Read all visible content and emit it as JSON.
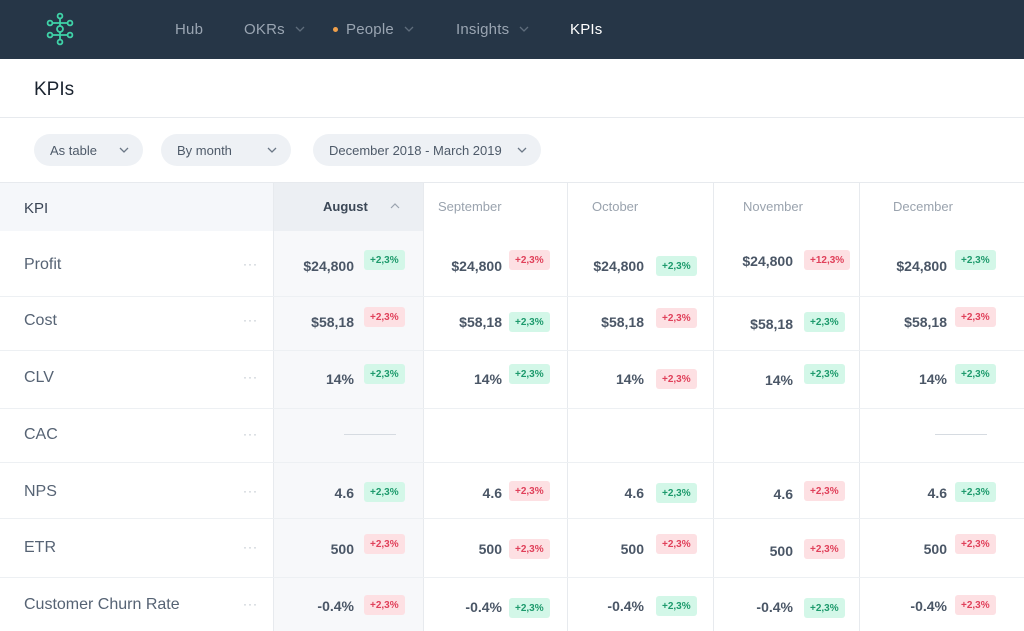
{
  "nav": {
    "logo_icon": "network-node-icon",
    "items": [
      {
        "label": "Hub",
        "has_dropdown": false,
        "active": false,
        "dot": false
      },
      {
        "label": "OKRs",
        "has_dropdown": true,
        "active": false,
        "dot": false
      },
      {
        "label": "People",
        "has_dropdown": true,
        "active": false,
        "dot": true
      },
      {
        "label": "Insights",
        "has_dropdown": true,
        "active": false,
        "dot": false
      },
      {
        "label": "KPIs",
        "has_dropdown": false,
        "active": true,
        "dot": false
      }
    ],
    "colors": {
      "background": "#263647",
      "dot": "#f0a04b"
    }
  },
  "page": {
    "title": "KPIs"
  },
  "filters": {
    "view": "As table",
    "grouping": "By month",
    "range": "December 2018 - March 2019"
  },
  "table": {
    "kpi_header": "KPI",
    "columns": [
      "August",
      "September",
      "October",
      "November",
      "December"
    ],
    "sorted_column": "August",
    "rows": [
      {
        "label": "Profit",
        "cells": [
          {
            "value": "$24,800",
            "change": "+2,3%",
            "trend": "up"
          },
          {
            "value": "$24,800",
            "change": "+2,3%",
            "trend": "down"
          },
          {
            "value": "$24,800",
            "change": "+2,3%",
            "trend": "up"
          },
          {
            "value": "$24,800",
            "change": "+12,3%",
            "trend": "down"
          },
          {
            "value": "$24,800",
            "change": "+2,3%",
            "trend": "up"
          }
        ]
      },
      {
        "label": "Cost",
        "cells": [
          {
            "value": "$58,18",
            "change": "+2,3%",
            "trend": "down"
          },
          {
            "value": "$58,18",
            "change": "+2,3%",
            "trend": "up"
          },
          {
            "value": "$58,18",
            "change": "+2,3%",
            "trend": "down"
          },
          {
            "value": "$58,18",
            "change": "+2,3%",
            "trend": "up"
          },
          {
            "value": "$58,18",
            "change": "+2,3%",
            "trend": "down"
          }
        ]
      },
      {
        "label": "CLV",
        "cells": [
          {
            "value": "14%",
            "change": "+2,3%",
            "trend": "up"
          },
          {
            "value": "14%",
            "change": "+2,3%",
            "trend": "up"
          },
          {
            "value": "14%",
            "change": "+2,3%",
            "trend": "down"
          },
          {
            "value": "14%",
            "change": "+2,3%",
            "trend": "up"
          },
          {
            "value": "14%",
            "change": "+2,3%",
            "trend": "up"
          }
        ]
      },
      {
        "label": "CAC",
        "cells": [
          null,
          null,
          null,
          null,
          null
        ]
      },
      {
        "label": "NPS",
        "cells": [
          {
            "value": "4.6",
            "change": "+2,3%",
            "trend": "up"
          },
          {
            "value": "4.6",
            "change": "+2,3%",
            "trend": "down"
          },
          {
            "value": "4.6",
            "change": "+2,3%",
            "trend": "up"
          },
          {
            "value": "4.6",
            "change": "+2,3%",
            "trend": "down"
          },
          {
            "value": "4.6",
            "change": "+2,3%",
            "trend": "up"
          }
        ]
      },
      {
        "label": "ETR",
        "cells": [
          {
            "value": "500",
            "change": "+2,3%",
            "trend": "down"
          },
          {
            "value": "500",
            "change": "+2,3%",
            "trend": "down"
          },
          {
            "value": "500",
            "change": "+2,3%",
            "trend": "down"
          },
          {
            "value": "500",
            "change": "+2,3%",
            "trend": "down"
          },
          {
            "value": "500",
            "change": "+2,3%",
            "trend": "down"
          }
        ]
      },
      {
        "label": "Customer Churn Rate",
        "cells": [
          {
            "value": "-0.4%",
            "change": "+2,3%",
            "trend": "down"
          },
          {
            "value": "-0.4%",
            "change": "+2,3%",
            "trend": "up"
          },
          {
            "value": "-0.4%",
            "change": "+2,3%",
            "trend": "up"
          },
          {
            "value": "-0.4%",
            "change": "+2,3%",
            "trend": "up"
          },
          {
            "value": "-0.4%",
            "change": "+2,3%",
            "trend": "down"
          }
        ]
      }
    ],
    "row_menu_label": "···",
    "colors": {
      "up_bg": "#d3f7e8",
      "up_text": "#1d9a6c",
      "down_bg": "#fde0e3",
      "down_text": "#e0405a"
    }
  }
}
